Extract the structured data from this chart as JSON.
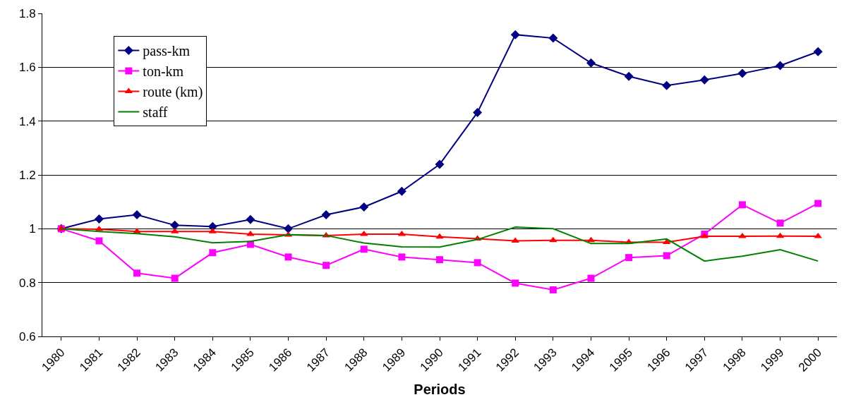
{
  "chart_data": {
    "type": "line",
    "xlabel": "Periods",
    "categories": [
      "1980",
      "1981",
      "1982",
      "1983",
      "1984",
      "1985",
      "1986",
      "1987",
      "1988",
      "1989",
      "1990",
      "1991",
      "1992",
      "1993",
      "1994",
      "1995",
      "1996",
      "1997",
      "1998",
      "1999",
      "2000"
    ],
    "series": [
      {
        "name": "pass-km",
        "color": "#000080",
        "marker": "diamond",
        "values": [
          1.0,
          1.036,
          1.052,
          1.013,
          1.008,
          1.034,
          1.0,
          1.052,
          1.081,
          1.139,
          1.239,
          1.432,
          1.721,
          1.708,
          1.616,
          1.566,
          1.532,
          1.553,
          1.577,
          1.606,
          1.658
        ]
      },
      {
        "name": "ton-km",
        "color": "#ff00ff",
        "marker": "square",
        "values": [
          1.0,
          0.955,
          0.835,
          0.816,
          0.911,
          0.942,
          0.895,
          0.864,
          0.924,
          0.895,
          0.885,
          0.874,
          0.798,
          0.773,
          0.816,
          0.893,
          0.9,
          0.98,
          1.089,
          1.021,
          1.094
        ]
      },
      {
        "name": "route (km)",
        "color": "#ff0000",
        "marker": "triangle",
        "values": [
          1.0,
          0.998,
          0.99,
          0.99,
          0.99,
          0.98,
          0.977,
          0.975,
          0.98,
          0.98,
          0.97,
          0.963,
          0.955,
          0.957,
          0.957,
          0.95,
          0.95,
          0.972,
          0.972,
          0.973,
          0.972
        ]
      },
      {
        "name": "staff",
        "color": "#008000",
        "marker": "none",
        "values": [
          1.0,
          0.99,
          0.982,
          0.97,
          0.948,
          0.953,
          0.978,
          0.975,
          0.947,
          0.933,
          0.932,
          0.96,
          1.006,
          1.0,
          0.945,
          0.945,
          0.962,
          0.88,
          0.898,
          0.922,
          0.88
        ]
      }
    ],
    "ylim": [
      0.6,
      1.8
    ],
    "yticks": [
      0.6,
      0.8,
      1,
      1.2,
      1.4,
      1.6,
      1.8
    ],
    "grid": "y",
    "legend": "top left",
    "line_style": "solid"
  }
}
